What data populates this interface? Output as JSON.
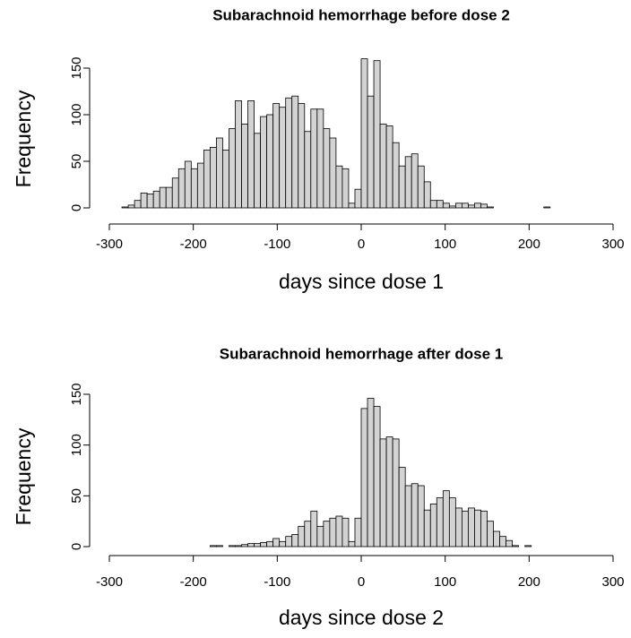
{
  "chart_data": [
    {
      "type": "histogram",
      "title": "Subarachnoid hemorrhage before dose 2",
      "x_label": "days since dose 1",
      "y_label": "Frequency",
      "color": "#d3d3d3",
      "bins": [
        -300,
        -292.5,
        -285,
        -277.5,
        -270,
        -262.5,
        -255,
        -247.5,
        -240,
        -232.5,
        -225,
        -217.5,
        -210,
        -202.5,
        -195,
        -187.5,
        -180,
        -172.5,
        -165,
        -157.5,
        -150,
        -142.5,
        -135,
        -127.5,
        -120,
        -112.5,
        -105,
        -97.5,
        -90,
        -82.5,
        -75,
        -67.5,
        -60,
        -52.5,
        -45,
        -37.5,
        -30,
        -22.5,
        -15,
        -7.5,
        0,
        7.5,
        15,
        22.5,
        30,
        37.5,
        45,
        52.5,
        60,
        67.5,
        75,
        82.5,
        90,
        97.5,
        105,
        112.5,
        120,
        127.5,
        135,
        142.5,
        150,
        157.5,
        165,
        172.5,
        180,
        187.5,
        195,
        202.5,
        210,
        217.5,
        225,
        232.5,
        240,
        247.5,
        255,
        262.5,
        270,
        277.5,
        285,
        292.5,
        300
      ],
      "counts": [
        0,
        0,
        1,
        3,
        8,
        16,
        15,
        18,
        22,
        22,
        32,
        42,
        50,
        42,
        48,
        62,
        65,
        75,
        62,
        85,
        115,
        90,
        115,
        80,
        98,
        100,
        112,
        108,
        118,
        120,
        112,
        82,
        106,
        106,
        85,
        75,
        45,
        42,
        5,
        20,
        160,
        120,
        158,
        90,
        88,
        70,
        45,
        55,
        58,
        45,
        28,
        8,
        8,
        5,
        2,
        5,
        5,
        3,
        5,
        4,
        1,
        0,
        0,
        0,
        0,
        0,
        0,
        0,
        0,
        1,
        0,
        0,
        0,
        0,
        0,
        0,
        0,
        0,
        0,
        0
      ],
      "xlim": [
        -300,
        300
      ],
      "xticks": [
        -300,
        -200,
        -100,
        0,
        100,
        200,
        300
      ],
      "ylim": [
        0,
        160
      ],
      "yticks": [
        0,
        50,
        100,
        150
      ]
    },
    {
      "type": "histogram",
      "title": "Subarachnoid hemorrhage after dose 1",
      "x_label": "days since dose 2",
      "y_label": "Frequency",
      "color": "#d3d3d3",
      "bins": [
        -300,
        -292.5,
        -285,
        -277.5,
        -270,
        -262.5,
        -255,
        -247.5,
        -240,
        -232.5,
        -225,
        -217.5,
        -210,
        -202.5,
        -195,
        -187.5,
        -180,
        -172.5,
        -165,
        -157.5,
        -150,
        -142.5,
        -135,
        -127.5,
        -120,
        -112.5,
        -105,
        -97.5,
        -90,
        -82.5,
        -75,
        -67.5,
        -60,
        -52.5,
        -45,
        -37.5,
        -30,
        -22.5,
        -15,
        -7.5,
        0,
        7.5,
        15,
        22.5,
        30,
        37.5,
        45,
        52.5,
        60,
        67.5,
        75,
        82.5,
        90,
        97.5,
        105,
        112.5,
        120,
        127.5,
        135,
        142.5,
        150,
        157.5,
        165,
        172.5,
        180,
        187.5,
        195,
        202.5,
        210,
        217.5,
        225,
        232.5,
        240,
        247.5,
        255,
        262.5,
        270,
        277.5,
        285,
        292.5,
        300
      ],
      "counts": [
        0,
        0,
        0,
        0,
        0,
        0,
        0,
        0,
        0,
        0,
        0,
        0,
        0,
        0,
        0,
        0,
        1,
        1,
        0,
        1,
        1,
        2,
        3,
        3,
        4,
        5,
        8,
        5,
        10,
        12,
        20,
        25,
        35,
        20,
        25,
        28,
        30,
        28,
        5,
        28,
        136,
        146,
        138,
        106,
        108,
        106,
        78,
        60,
        62,
        60,
        36,
        42,
        48,
        55,
        48,
        38,
        35,
        38,
        36,
        35,
        25,
        15,
        10,
        6,
        1,
        0,
        1,
        0,
        0,
        0,
        0,
        0,
        0,
        0,
        0,
        0,
        0,
        0,
        0,
        0
      ],
      "xlim": [
        -300,
        300
      ],
      "xticks": [
        -300,
        -200,
        -100,
        0,
        100,
        200,
        300
      ],
      "ylim": [
        0,
        150
      ],
      "yticks": [
        0,
        50,
        100,
        150
      ]
    }
  ]
}
